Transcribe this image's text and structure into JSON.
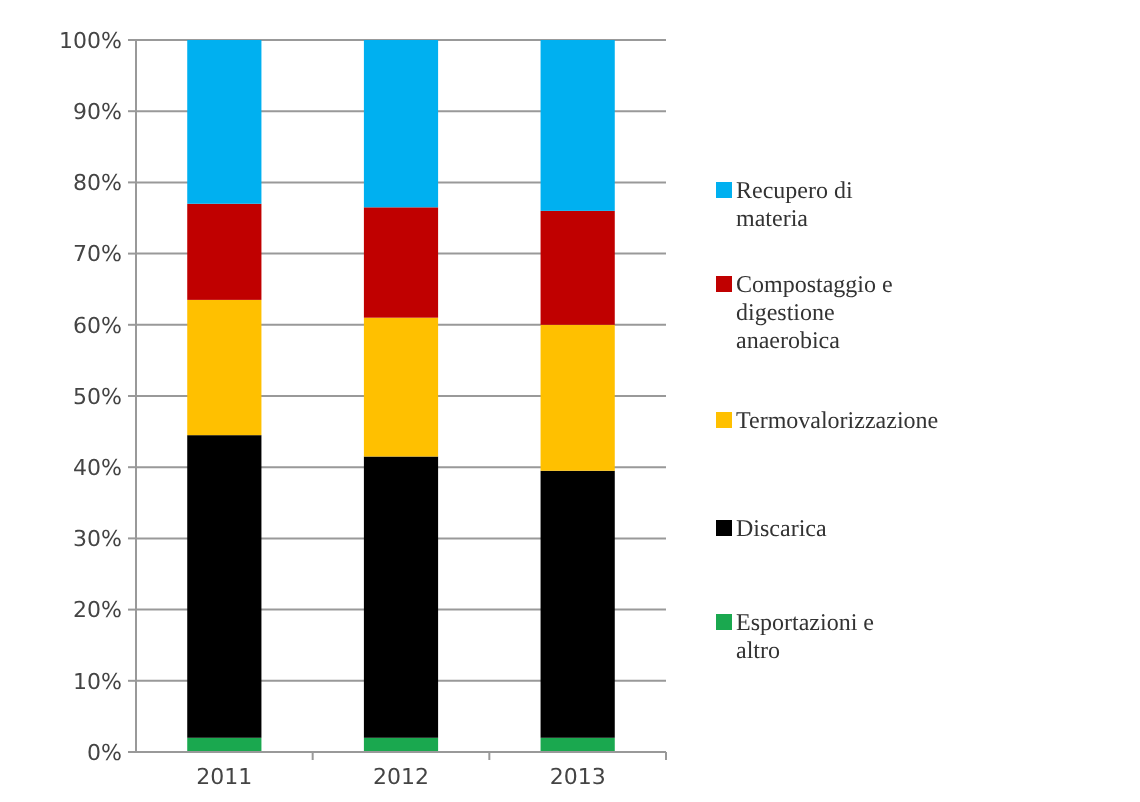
{
  "chart_data": {
    "type": "bar",
    "stacked": true,
    "categories": [
      "2011",
      "2012",
      "2013"
    ],
    "series": [
      {
        "name": "Esportazioni e altro",
        "color": "#1aa84f",
        "values": [
          2,
          2,
          2
        ]
      },
      {
        "name": "Discarica",
        "color": "#000000",
        "values": [
          42.5,
          39.5,
          37.5
        ]
      },
      {
        "name": "Termovalorizzazione",
        "color": "#ffc000",
        "values": [
          19,
          19.5,
          20.5
        ]
      },
      {
        "name": "Compostaggio e digestione anaerobica",
        "color": "#c00000",
        "values": [
          13.5,
          15.5,
          16
        ]
      },
      {
        "name": "Recupero di materia",
        "color": "#00b0f0",
        "values": [
          23,
          23.5,
          24
        ]
      }
    ],
    "ylim": [
      0,
      100
    ],
    "yticks": [
      {
        "value": 0,
        "label": "0%"
      },
      {
        "value": 10,
        "label": "10%"
      },
      {
        "value": 20,
        "label": "20%"
      },
      {
        "value": 30,
        "label": "30%"
      },
      {
        "value": 40,
        "label": "40%"
      },
      {
        "value": 50,
        "label": "50%"
      },
      {
        "value": 60,
        "label": "60%"
      },
      {
        "value": 70,
        "label": "70%"
      },
      {
        "value": 80,
        "label": "80%"
      },
      {
        "value": 90,
        "label": "90%"
      },
      {
        "value": 100,
        "label": "100%"
      }
    ],
    "grid": "y",
    "legend": "right"
  }
}
